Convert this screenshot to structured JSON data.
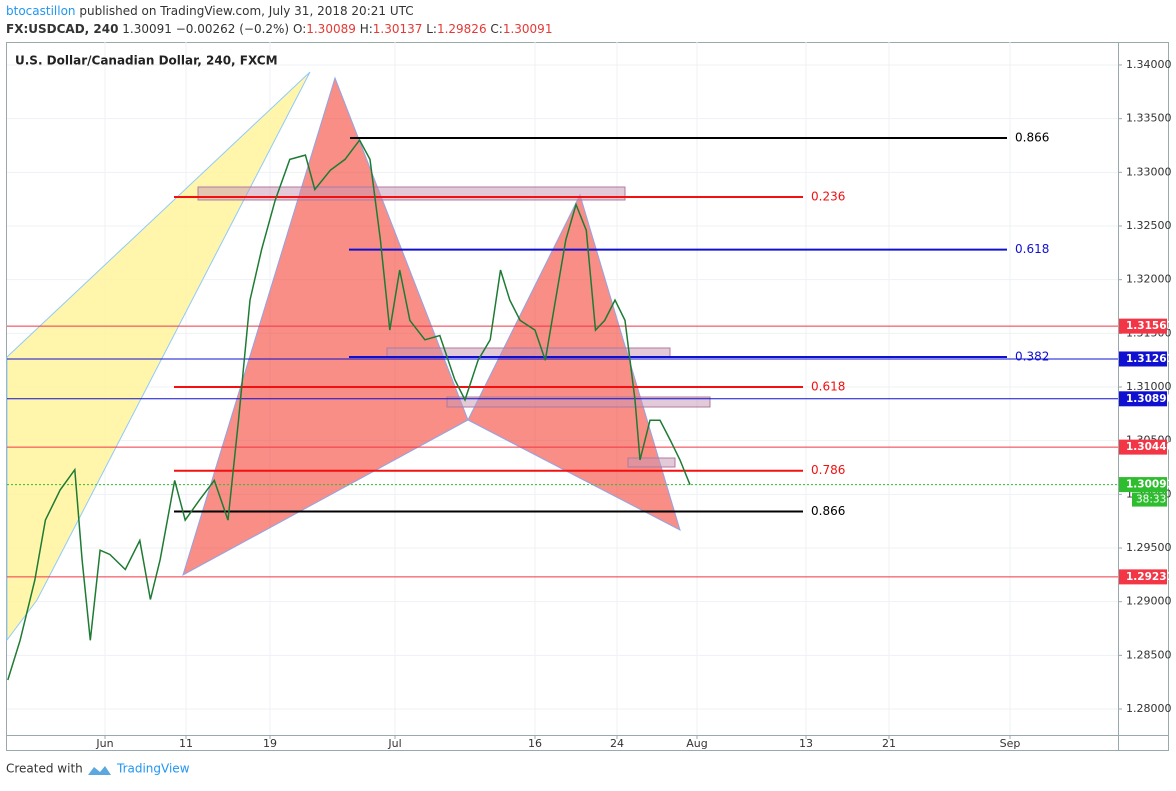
{
  "header": {
    "author": "btocastillon",
    "published": "published on TradingView.com, July 31, 2018 20:21 UTC",
    "symbol": "FX:USDCAD, 240",
    "last": "1.30091",
    "change": "−0.00262 (−0.2%)",
    "ohlc": [
      {
        "key": "O:",
        "value": "1.30089"
      },
      {
        "key": "H:",
        "value": "1.30137"
      },
      {
        "key": "L:",
        "value": "1.29826"
      },
      {
        "key": "C:",
        "value": "1.30091"
      }
    ]
  },
  "footer": {
    "created": "Created with",
    "brand": "TradingView"
  },
  "chart_data": {
    "type": "line",
    "title": "U.S. Dollar/Canadian Dollar, 240, FXCM",
    "color": "#1e7b34",
    "x": [
      140.1,
      141.6,
      143.4,
      144.7,
      146.5,
      148.3,
      149.2,
      150.2,
      151.4,
      152.6,
      154.5,
      156.3,
      157.6,
      158.8,
      160.6,
      161.9,
      163.3,
      164.7,
      166.0,
      167.0,
      168.1,
      169.2,
      170.5,
      171.9,
      173.4,
      174.3,
      175.8,
      177.2,
      178.6,
      179.6,
      180.6,
      181.5,
      182.5,
      183.6,
      185.2,
      186.8,
      188.4,
      189.5,
      190.9,
      192.2,
      193.3,
      194.3,
      195.4,
      197.0,
      198.0,
      199.0,
      200.0,
      201.0,
      202.0,
      202.9,
      203.8,
      204.8,
      205.8,
      206.8,
      207.3,
      208.3,
      209.3,
      210.3,
      211.3,
      212.3
    ],
    "values": [
      1.2827,
      1.2864,
      1.292,
      1.2976,
      1.3004,
      1.3023,
      1.2939,
      1.2864,
      1.2948,
      1.2944,
      1.293,
      1.2957,
      1.2902,
      1.2939,
      1.3013,
      1.2976,
      1.2995,
      1.3013,
      1.2976,
      1.3069,
      1.3181,
      1.3228,
      1.3274,
      1.3312,
      1.3316,
      1.3284,
      1.3302,
      1.3312,
      1.333,
      1.3312,
      1.3237,
      1.3153,
      1.3209,
      1.3162,
      1.3144,
      1.3148,
      1.3107,
      1.3088,
      1.3125,
      1.3144,
      1.3209,
      1.3181,
      1.3162,
      1.3153,
      1.3125,
      1.3181,
      1.3237,
      1.327,
      1.3246,
      1.3153,
      1.3162,
      1.3181,
      1.3162,
      1.3088,
      1.3032,
      1.3069,
      1.3069,
      1.3051,
      1.3032,
      1.3009
    ],
    "xlim": [
      140,
      254
    ],
    "xticks": [
      {
        "value": 152,
        "label": "Jun"
      },
      {
        "value": 162,
        "label": "11"
      },
      {
        "value": 170,
        "label": "19"
      },
      {
        "value": 182,
        "label": "Jul"
      },
      {
        "value": 197,
        "label": "16"
      },
      {
        "value": 205,
        "label": "24"
      },
      {
        "value": 213,
        "label": "Aug"
      },
      {
        "value": 225,
        "label": "13"
      },
      {
        "value": 233,
        "label": "21"
      },
      {
        "value": 244,
        "label": "Sep"
      }
    ],
    "ylim": [
      1.27758,
      1.34214
    ],
    "yticks": [
      {
        "value": 1.28,
        "label": "1.28000"
      },
      {
        "value": 1.285,
        "label": "1.28500"
      },
      {
        "value": 1.29,
        "label": "1.29000"
      },
      {
        "value": 1.295,
        "label": "1.29500"
      },
      {
        "value": 1.3,
        "label": "1.30000"
      },
      {
        "value": 1.305,
        "label": "1.30500"
      },
      {
        "value": 1.31,
        "label": "1.31000"
      },
      {
        "value": 1.315,
        "label": "1.31500"
      },
      {
        "value": 1.32,
        "label": "1.32000"
      },
      {
        "value": 1.325,
        "label": "1.32500"
      },
      {
        "value": 1.33,
        "label": "1.33000"
      },
      {
        "value": 1.335,
        "label": "1.33500"
      },
      {
        "value": 1.34,
        "label": "1.34000"
      }
    ],
    "grid": true,
    "price_lines": {
      "values": [
        1.31567,
        1.31261,
        1.3089,
        1.3044,
        1.30091,
        1.29231
      ],
      "value_labels": [
        "1.31567",
        "1.31261",
        "1.30890",
        "1.30440",
        "1.30091",
        "1.29231"
      ],
      "colors": [
        "#f23645",
        "#1010d0",
        "#1010d0",
        "#f23645",
        "#2ebd2e",
        "#f23645"
      ]
    },
    "countdown": "38:33",
    "fib_levels": [
      {
        "label": "0.866",
        "value": 1.3332,
        "color": "#000000"
      },
      {
        "label": "0.236",
        "value": 1.3277,
        "color": "#f21010"
      },
      {
        "label": "0.618",
        "value": 1.3228,
        "color": "#1010d0"
      },
      {
        "label": "0.382",
        "value": 1.3128,
        "color": "#1010d0"
      },
      {
        "label": "0.618",
        "value": 1.31,
        "color": "#f21010"
      },
      {
        "label": "0.786",
        "value": 1.3022,
        "color": "#f21010"
      },
      {
        "label": "0.866",
        "value": 1.2984,
        "color": "#000000"
      }
    ]
  }
}
